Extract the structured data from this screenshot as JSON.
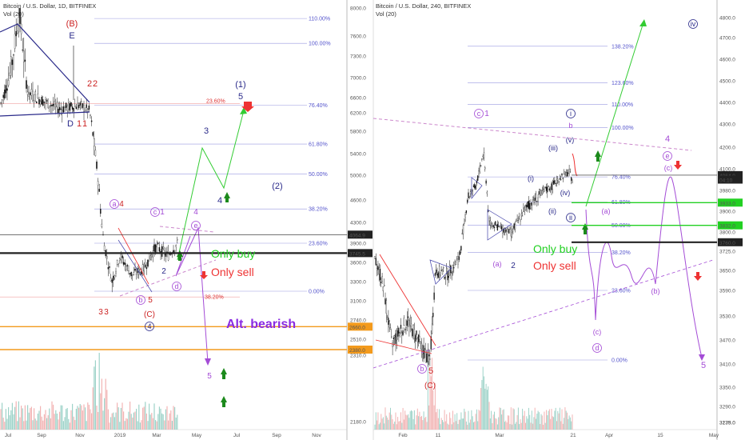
{
  "header": {
    "left_title": "Bitcoin / U.S. Dollar, 1D, BITFINEX",
    "right_title": "Bitcoin / U.S. Dollar, 240, BITFINEX",
    "vol_label": "Vol (20)"
  },
  "chart_data": [
    {
      "type": "candlestick",
      "title": "Bitcoin / U.S. Dollar, 1D, BITFINEX",
      "ylim": [
        2180,
        8000
      ],
      "y_ticks": [
        "8000.0",
        "7600.0",
        "7300.0",
        "7000.0",
        "6600.0",
        "6200.0",
        "5800.0",
        "5400.0",
        "5000.0",
        "4600.0",
        "4300.0",
        "3900.0",
        "3600.0",
        "3300.0",
        "3100.0",
        "2740.0",
        "2510.0",
        "2310.0",
        "2180.0"
      ],
      "x_ticks": [
        "Jul",
        "Sep",
        "Nov",
        "2019",
        "Mar",
        "May",
        "Jul",
        "Sep",
        "Nov"
      ],
      "price_badges": [
        {
          "label": "4064.9",
          "value": 4064.9,
          "style": "dark"
        },
        {
          "label": "3745.5",
          "value": 3745.5,
          "style": "dark"
        },
        {
          "label": "2660.0",
          "value": 2660,
          "style": "orange"
        },
        {
          "label": "2380.0",
          "value": 2380,
          "style": "orange"
        }
      ],
      "fib_levels": [
        {
          "label": "110.00%",
          "value": 7850
        },
        {
          "label": "100.00%",
          "value": 7490
        },
        {
          "label": "76.40%",
          "value": 6400
        },
        {
          "label": "61.80%",
          "value": 5570
        },
        {
          "label": "50.00%",
          "value": 5020
        },
        {
          "label": "38.20%",
          "value": 4480
        },
        {
          "label": "23.60%",
          "value": 3900
        },
        {
          "label": "0.00%",
          "value": 3200
        }
      ],
      "fib_red": [
        {
          "label": "23.60%",
          "value": 6440
        },
        {
          "label": "38.20%",
          "value": 3140
        }
      ],
      "wave_labels": [
        "(B)",
        "E",
        "2",
        "2",
        "D",
        "1",
        "1",
        "(1)",
        "5",
        "3",
        "4",
        "(2)",
        "a",
        "4",
        "c",
        "1",
        "4",
        "e",
        "2",
        "d",
        "b",
        "5",
        "3",
        "3",
        "(C)",
        "4",
        "5"
      ],
      "annotations": [
        "Only buy",
        "Only sell",
        "Alt. bearish"
      ]
    },
    {
      "type": "candlestick",
      "title": "Bitcoin / U.S. Dollar, 240, BITFINEX",
      "ylim": [
        3179,
        4800
      ],
      "y_ticks": [
        "4800.0",
        "4700.0",
        "4600.0",
        "4500.0",
        "4400.0",
        "4300.0",
        "4200.0",
        "4100.0",
        "3980.0",
        "3900.0",
        "3800.0",
        "3725.0",
        "3650.0",
        "3590.0",
        "3530.0",
        "3470.0",
        "3410.0",
        "3350.0",
        "3290.0",
        "3235.0",
        "3179.0"
      ],
      "x_ticks": [
        "Feb",
        "11",
        "Mar",
        "21",
        "Apr",
        "15",
        "May"
      ],
      "price_badges": [
        {
          "label": "4064.9",
          "value": 4064.9,
          "style": "dark"
        },
        {
          "label": "04:10",
          "value": 4040,
          "style": "dark"
        },
        {
          "label": "3933.0",
          "value": 3933,
          "style": "green"
        },
        {
          "label": "3832.0",
          "value": 3832,
          "style": "green"
        },
        {
          "label": "3760.0",
          "value": 3760,
          "style": "dark"
        }
      ],
      "fib_levels": [
        {
          "label": "138.20%",
          "value": 4660
        },
        {
          "label": "123.60%",
          "value": 4490
        },
        {
          "label": "110.00%",
          "value": 4390
        },
        {
          "label": "100.00%",
          "value": 4285
        },
        {
          "label": "76.40%",
          "value": 4055
        },
        {
          "label": "61.80%",
          "value": 3935
        },
        {
          "label": "50.00%",
          "value": 3832
        },
        {
          "label": "38.20%",
          "value": 3720
        },
        {
          "label": "23.60%",
          "value": 3590
        },
        {
          "label": "0.00%",
          "value": 3420
        }
      ],
      "wave_labels": [
        "c",
        "1",
        "i",
        "b",
        "(v)",
        "(iii)",
        "(i)",
        "(iv)",
        "ii",
        "(ii)",
        "(a)",
        "2",
        "4",
        "e",
        "(c)",
        "iv",
        "(a)",
        "(b)",
        "(c)",
        "d",
        "b",
        "5",
        "(C)",
        "5"
      ],
      "annotations": [
        "Only buy",
        "Only sell"
      ]
    }
  ]
}
